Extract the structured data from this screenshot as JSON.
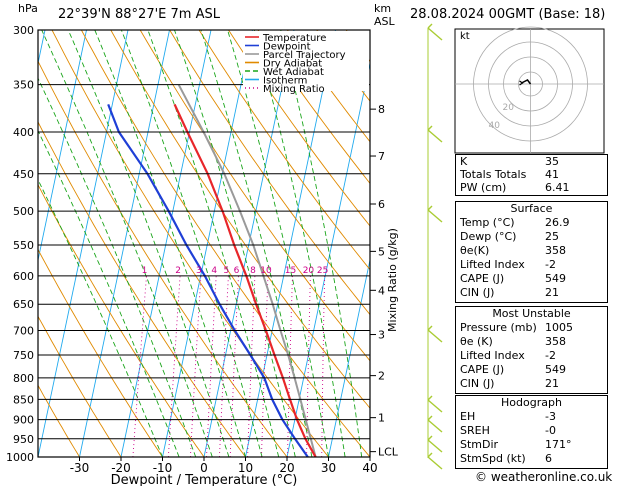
{
  "header": {
    "unit_left": "hPa",
    "location": "22°39'N  88°27'E  7m  ASL",
    "unit_right_1": "km",
    "unit_right_2": "ASL",
    "datetime": "28.08.2024  00GMT  (Base: 18)"
  },
  "legend": [
    "Temperature",
    "Dewpoint",
    "Parcel Trajectory",
    "Dry Adiabat",
    "Wet Adiabat",
    "Isotherm",
    "Mixing Ratio"
  ],
  "colors": {
    "temperature": "#e8262a",
    "dewpoint": "#1f3fd6",
    "parcel": "#9a9a9a",
    "dry_adiabat": "#e08a00",
    "wet_adiabat": "#1aa51a",
    "isotherm": "#22aaee",
    "mixing_ratio": "#cc0088",
    "wind": "#aacc33"
  },
  "chart_data": {
    "type": "skew-t log-p",
    "xlabel": "Dewpoint / Temperature (°C)",
    "ylabel_right": "Mixing Ratio (g/kg)",
    "pressure_levels": [
      300,
      350,
      400,
      450,
      500,
      550,
      600,
      650,
      700,
      750,
      800,
      850,
      900,
      950,
      1000
    ],
    "x_ticks": [
      -30,
      -20,
      -10,
      0,
      10,
      20,
      30,
      40
    ],
    "xlim": [
      -40,
      40
    ],
    "ylim": [
      1000,
      300
    ],
    "km_ticks": [
      {
        "label": "8",
        "p": 375
      },
      {
        "label": "7",
        "p": 428
      },
      {
        "label": "6",
        "p": 490
      },
      {
        "label": "5",
        "p": 560
      },
      {
        "label": "4",
        "p": 625
      },
      {
        "label": "3",
        "p": 708
      },
      {
        "label": "2",
        "p": 795
      },
      {
        "label": "1",
        "p": 895
      },
      {
        "label": "LCL",
        "p": 985
      }
    ],
    "mixing_ratio_labels": [
      "1",
      "2",
      "3",
      "4",
      "5",
      "6",
      "8",
      "10",
      "15",
      "20",
      "25"
    ],
    "mixing_ratio_values": [
      1,
      2,
      3,
      4,
      5,
      6,
      8,
      10,
      15,
      20,
      25
    ],
    "temperature": {
      "p": [
        1000,
        950,
        900,
        850,
        800,
        750,
        700,
        650,
        600,
        550,
        500,
        450,
        400,
        370
      ],
      "t": [
        26.9,
        23.5,
        20.5,
        17.8,
        15.0,
        11.8,
        8.5,
        4.8,
        1.0,
        -3.5,
        -8.0,
        -13.5,
        -20.5,
        -25.0
      ]
    },
    "dewpoint": {
      "p": [
        1000,
        950,
        900,
        850,
        800,
        750,
        700,
        650,
        600,
        550,
        500,
        450,
        400,
        370
      ],
      "t": [
        25.0,
        21.0,
        17.0,
        13.5,
        10.5,
        6.0,
        1.0,
        -4.0,
        -9.0,
        -15.0,
        -21.0,
        -28.0,
        -37.0,
        -41.0
      ]
    },
    "parcel": {
      "p": [
        1000,
        950,
        900,
        850,
        800,
        750,
        700,
        650,
        600,
        550,
        500,
        450,
        400,
        350
      ],
      "t": [
        26.9,
        24.8,
        22.6,
        20.3,
        17.8,
        15.1,
        12.0,
        8.8,
        5.1,
        1.1,
        -3.8,
        -9.5,
        -16.6,
        -25.0
      ]
    }
  },
  "hodograph": {
    "label": "kt",
    "ring_labels": [
      "20",
      "40"
    ]
  },
  "indices": [
    {
      "label": "K",
      "value": "35"
    },
    {
      "label": "Totals Totals",
      "value": "41"
    },
    {
      "label": "PW (cm)",
      "value": "6.41"
    }
  ],
  "surface": {
    "title": "Surface",
    "rows": [
      {
        "label": "Temp (°C)",
        "value": "26.9"
      },
      {
        "label": "Dewp (°C)",
        "value": "25"
      },
      {
        "label": "θe(K)",
        "value": "358"
      },
      {
        "label": "Lifted Index",
        "value": "-2"
      },
      {
        "label": "CAPE (J)",
        "value": "549"
      },
      {
        "label": "CIN (J)",
        "value": "21"
      }
    ]
  },
  "most_unstable": {
    "title": "Most Unstable",
    "rows": [
      {
        "label": "Pressure (mb)",
        "value": "1005"
      },
      {
        "label": "θe (K)",
        "value": "358"
      },
      {
        "label": "Lifted Index",
        "value": "-2"
      },
      {
        "label": "CAPE (J)",
        "value": "549"
      },
      {
        "label": "CIN (J)",
        "value": "21"
      }
    ]
  },
  "hodograph_table": {
    "title": "Hodograph",
    "rows": [
      {
        "label": "EH",
        "value": "-3"
      },
      {
        "label": "SREH",
        "value": "-0"
      },
      {
        "label": "StmDir",
        "value": "171°"
      },
      {
        "label": "StmSpd (kt)",
        "value": "6"
      }
    ]
  },
  "copyright": "© weatheronline.co.uk"
}
